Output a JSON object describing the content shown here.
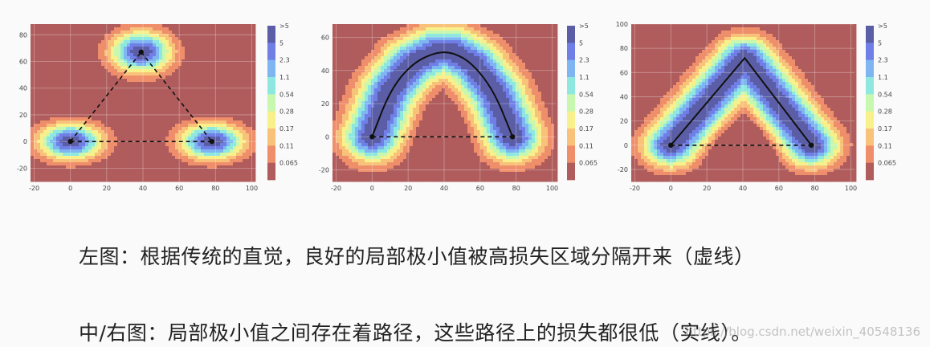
{
  "captions": {
    "left": "左图：根据传统的直觉，良好的局部极小值被高损失区域分隔开来（虚线）",
    "right": "中/右图：局部极小值之间存在着路径，这些路径上的损失都很低（实线）。"
  },
  "watermark": "https://blog.csdn.net/weixin_40548136",
  "colorbar_labels": [
    ">5",
    "5",
    "2.3",
    "1.1",
    "0.54",
    "0.28",
    "0.17",
    "0.11",
    "0.065"
  ],
  "colorbar_colors": [
    "#5b5ea6",
    "#6f7fe6",
    "#7fb6f2",
    "#8ee8e0",
    "#c8f7b0",
    "#f8f08a",
    "#f8c27a",
    "#ef8e6a",
    "#b05c5c"
  ],
  "chart_data": [
    {
      "type": "heatmap",
      "panel": "left",
      "x_ticks": [
        -20,
        0,
        20,
        40,
        60,
        80,
        100
      ],
      "y_ticks": [
        80,
        60,
        40,
        20,
        0,
        -20
      ],
      "xlim": [
        -22,
        102
      ],
      "ylim": [
        -30,
        88
      ],
      "minima": [
        {
          "x": 0,
          "y": 0
        },
        {
          "x": 78,
          "y": 0
        },
        {
          "x": 39,
          "y": 67
        }
      ],
      "dashed_paths": [
        [
          {
            "x": 0,
            "y": 0
          },
          {
            "x": 39,
            "y": 67
          }
        ],
        [
          {
            "x": 39,
            "y": 67
          },
          {
            "x": 78,
            "y": 0
          }
        ],
        [
          {
            "x": 0,
            "y": 0
          },
          {
            "x": 78,
            "y": 0
          }
        ]
      ],
      "solid_paths": []
    },
    {
      "type": "heatmap",
      "panel": "middle",
      "x_ticks": [
        -20,
        0,
        20,
        40,
        60,
        80,
        100
      ],
      "y_ticks": [
        60,
        40,
        20,
        0,
        -20
      ],
      "xlim": [
        -22,
        102
      ],
      "ylim": [
        -27,
        68
      ],
      "minima": [
        {
          "x": 0,
          "y": 0
        },
        {
          "x": 78,
          "y": 0
        }
      ],
      "dashed_paths": [
        [
          {
            "x": 0,
            "y": 0
          },
          {
            "x": 78,
            "y": 0
          }
        ]
      ],
      "solid_paths": [
        [
          {
            "x": 0,
            "y": 0
          },
          {
            "x": 10,
            "y": 28
          },
          {
            "x": 22,
            "y": 44
          },
          {
            "x": 35,
            "y": 51
          },
          {
            "x": 45,
            "y": 51
          },
          {
            "x": 56,
            "y": 44
          },
          {
            "x": 68,
            "y": 27
          },
          {
            "x": 78,
            "y": 0
          }
        ]
      ]
    },
    {
      "type": "heatmap",
      "panel": "right",
      "x_ticks": [
        -20,
        0,
        20,
        40,
        60,
        80,
        100
      ],
      "y_ticks": [
        100,
        80,
        60,
        40,
        20,
        0,
        -20
      ],
      "xlim": [
        -22,
        102
      ],
      "ylim": [
        -30,
        100
      ],
      "minima": [
        {
          "x": 0,
          "y": 0
        },
        {
          "x": 78,
          "y": 0
        }
      ],
      "dashed_paths": [
        [
          {
            "x": 0,
            "y": 0
          },
          {
            "x": 78,
            "y": 0
          }
        ]
      ],
      "solid_paths": [
        [
          {
            "x": 0,
            "y": 0
          },
          {
            "x": 41,
            "y": 72
          },
          {
            "x": 78,
            "y": 0
          }
        ]
      ]
    }
  ]
}
